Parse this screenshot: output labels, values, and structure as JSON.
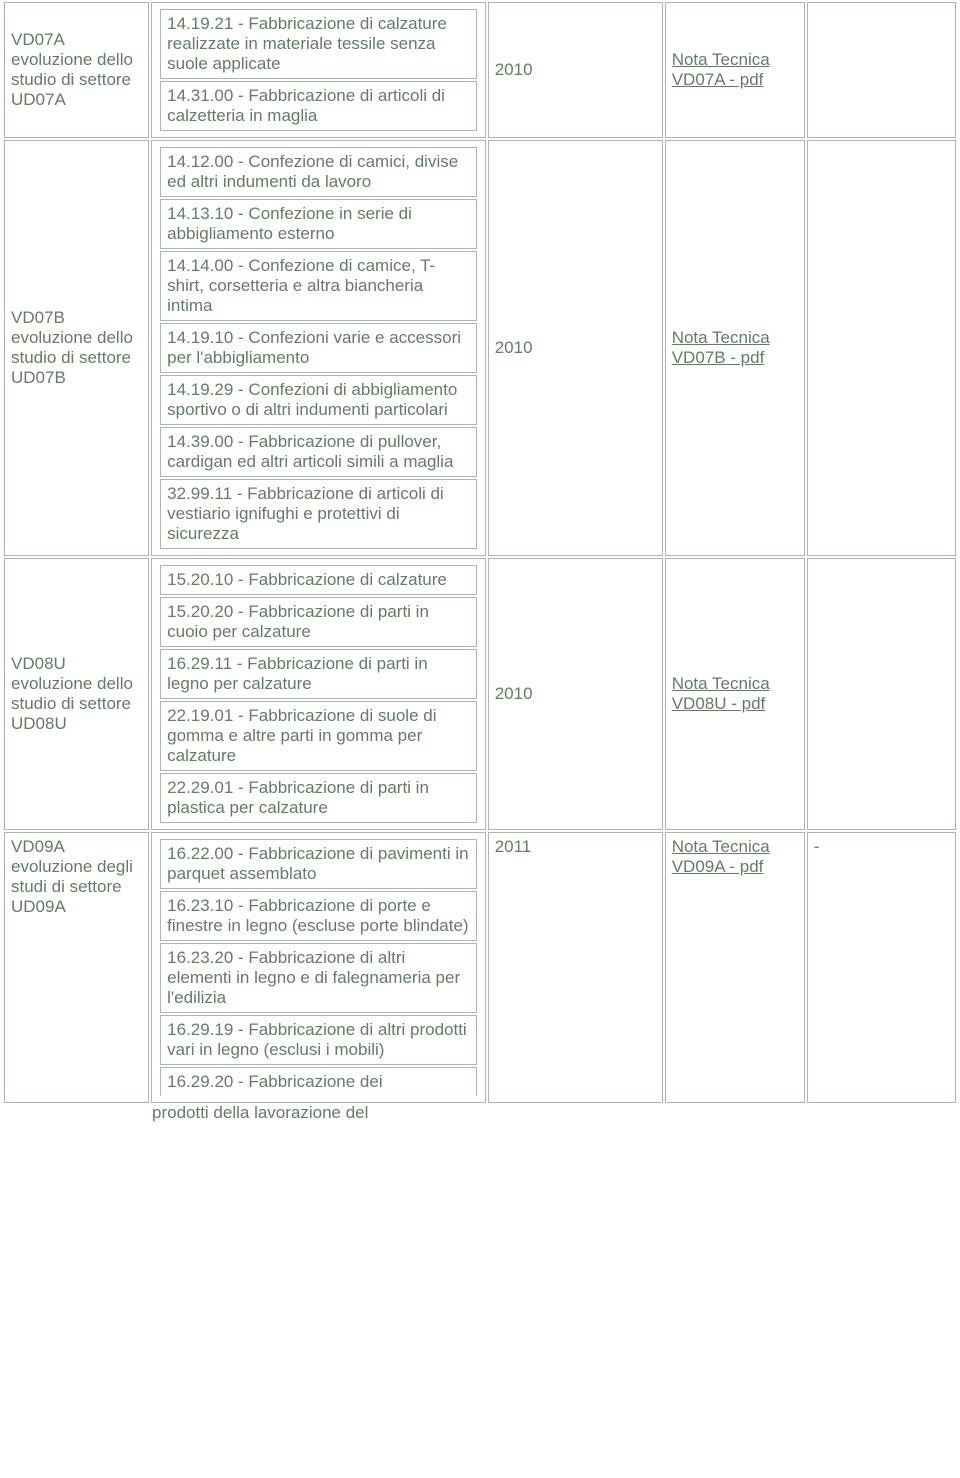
{
  "colors": {
    "text": "#657b66",
    "border": "#a9b8aa",
    "background": "#ffffff",
    "link": "#657b66"
  },
  "typography": {
    "fontFamily": "Verdana, Geneva, sans-serif",
    "fontSize": 17
  },
  "columnWidths": {
    "col1": 141,
    "col2": 325,
    "col3": 170,
    "col4": 136,
    "col5": 145
  },
  "rows": [
    {
      "col1": "VD07A evoluzione dello studio di settore UD07A",
      "col2_items": [
        "14.19.21 - Fabbricazione di calzature realizzate in materiale tessile senza suole applicate",
        "14.31.00 - Fabbricazione di articoli di calzetteria in maglia"
      ],
      "col3": "2010",
      "col4_link": "Nota Tecnica VD07A - pdf",
      "col5": ""
    },
    {
      "col1": "VD07B evoluzione dello studio di settore UD07B",
      "col2_items": [
        "14.12.00 - Confezione di camici, divise ed altri indumenti da lavoro",
        "14.13.10 - Confezione in serie di abbigliamento esterno",
        "14.14.00 - Confezione di camice, T-shirt, corsetteria e altra biancheria intima",
        "14.19.10 - Confezioni varie e accessori per l'abbigliamento",
        "14.19.29 - Confezioni di abbigliamento sportivo o di altri indumenti particolari",
        "14.39.00 - Fabbricazione di pullover, cardigan ed altri articoli simili a maglia",
        "32.99.11 - Fabbricazione di articoli di vestiario ignifughi e protettivi di sicurezza"
      ],
      "col3": "2010",
      "col4_link": "Nota Tecnica VD07B - pdf",
      "col5": ""
    },
    {
      "col1": "VD08U evoluzione dello studio di settore UD08U",
      "col2_items": [
        "15.20.10 - Fabbricazione di calzature",
        "15.20.20 - Fabbricazione di parti in cuoio per calzature",
        "16.29.11 - Fabbricazione di parti in legno per calzature",
        "22.19.01 - Fabbricazione di suole di gomma e altre parti in gomma per calzature",
        "22.29.01 - Fabbricazione di parti in plastica per calzature"
      ],
      "col3": "2010",
      "col4_link": "Nota Tecnica VD08U - pdf",
      "col5": ""
    },
    {
      "col1": "VD09A evoluzione degli studi di settore UD09A",
      "col1_valign": "top",
      "col2_items": [
        "16.22.00 - Fabbricazione di pavimenti in parquet assemblato",
        "16.23.10 - Fabbricazione di porte e finestre in legno (escluse porte blindate)",
        "16.23.20 - Fabbricazione di altri elementi in legno e di falegnameria per l'edilizia",
        "16.29.19 - Fabbricazione di altri prodotti vari in legno (esclusi i mobili)",
        "16.29.20 - Fabbricazione dei"
      ],
      "col3": "2011",
      "col3_valign": "top",
      "col4_link": "Nota Tecnica VD09A - pdf",
      "col4_valign": "top",
      "col5": "-",
      "col5_valign": "top"
    }
  ],
  "overflow_text": "prodotti della lavorazione del"
}
